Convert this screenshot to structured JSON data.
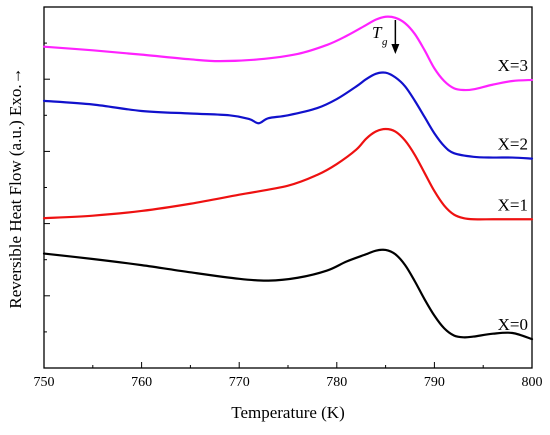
{
  "chart_data": {
    "type": "line",
    "xlabel": "Temperature (K)",
    "ylabel": "Reversible Heat Flow (a.u.) Exo.→",
    "xlim": [
      750,
      800
    ],
    "ylim": [
      0,
      10
    ],
    "grid": false,
    "legend": "none",
    "xticks": [
      "750",
      "760",
      "770",
      "780",
      "790",
      "800"
    ],
    "annotation": {
      "text": "T",
      "subscript": "g",
      "x": 786
    },
    "series": [
      {
        "name": "X=3",
        "color": "#ff22ff",
        "x": [
          750,
          755,
          760,
          765,
          768,
          772,
          776,
          779,
          781,
          783,
          784,
          785,
          786,
          787,
          788,
          789,
          790,
          791,
          792,
          793,
          794,
          796,
          798,
          800
        ],
        "y": [
          8.9,
          8.8,
          8.68,
          8.55,
          8.5,
          8.55,
          8.7,
          8.95,
          9.2,
          9.5,
          9.65,
          9.73,
          9.7,
          9.55,
          9.25,
          8.8,
          8.3,
          7.95,
          7.75,
          7.7,
          7.72,
          7.85,
          7.95,
          7.98
        ]
      },
      {
        "name": "X=2",
        "color": "#1111cc",
        "x": [
          750,
          755,
          760,
          765,
          769,
          771,
          772,
          773,
          775,
          778,
          780,
          782,
          783,
          784,
          785,
          786,
          787,
          788,
          789,
          790,
          791,
          792,
          794,
          796,
          798,
          800
        ],
        "y": [
          7.4,
          7.3,
          7.12,
          7.05,
          7.0,
          6.9,
          6.78,
          6.92,
          7.0,
          7.2,
          7.45,
          7.8,
          8.0,
          8.15,
          8.18,
          8.05,
          7.8,
          7.4,
          6.95,
          6.5,
          6.15,
          5.95,
          5.85,
          5.83,
          5.83,
          5.8
        ]
      },
      {
        "name": "X=1",
        "color": "#ee1111",
        "x": [
          750,
          755,
          760,
          765,
          770,
          775,
          778,
          780,
          782,
          783,
          784,
          785,
          786,
          787,
          788,
          789,
          790,
          791,
          792,
          793,
          794,
          796,
          798,
          800
        ],
        "y": [
          4.15,
          4.22,
          4.35,
          4.55,
          4.8,
          5.05,
          5.35,
          5.65,
          6.05,
          6.35,
          6.55,
          6.62,
          6.55,
          6.3,
          5.9,
          5.4,
          4.9,
          4.5,
          4.25,
          4.15,
          4.12,
          4.12,
          4.12,
          4.12
        ]
      },
      {
        "name": "X=0",
        "color": "#000000",
        "x": [
          750,
          755,
          760,
          765,
          770,
          773,
          776,
          779,
          781,
          783,
          784,
          785,
          786,
          787,
          788,
          789,
          790,
          791,
          792,
          793,
          794,
          796,
          798,
          800
        ],
        "y": [
          3.17,
          3.02,
          2.85,
          2.65,
          2.47,
          2.42,
          2.5,
          2.7,
          2.95,
          3.15,
          3.25,
          3.27,
          3.15,
          2.85,
          2.4,
          1.9,
          1.45,
          1.1,
          0.9,
          0.85,
          0.87,
          0.95,
          0.97,
          0.8
        ]
      }
    ]
  }
}
